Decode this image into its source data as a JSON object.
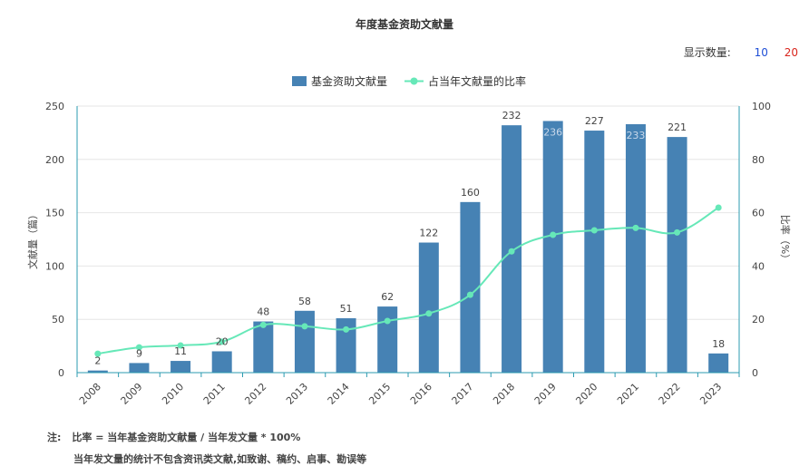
{
  "header": {
    "title": "年度基金资助文献量",
    "count_label": "显示数量:",
    "count_options": [
      "10",
      "20"
    ]
  },
  "colors": {
    "bar": "#4682b4",
    "line": "#66e8b8",
    "axis": "#2b9bb0",
    "grid": "#e6e6e6"
  },
  "chart_data": {
    "type": "bar",
    "title": "年度基金资助文献量",
    "categories": [
      "2008",
      "2009",
      "2010",
      "2011",
      "2012",
      "2013",
      "2014",
      "2015",
      "2016",
      "2017",
      "2018",
      "2019",
      "2020",
      "2021",
      "2022",
      "2023"
    ],
    "series": [
      {
        "name": "基金资助文献量",
        "type": "bar",
        "axis": "left",
        "values": [
          2,
          9,
          11,
          20,
          48,
          58,
          51,
          62,
          122,
          160,
          232,
          236,
          227,
          233,
          221,
          18
        ]
      },
      {
        "name": "占当年文献量的比率",
        "type": "line",
        "axis": "right",
        "values": [
          7.1,
          9.5,
          10.2,
          11.6,
          17.9,
          17.4,
          16.2,
          19.4,
          22.2,
          29.2,
          45.5,
          51.7,
          53.4,
          54.3,
          52.6,
          61.9
        ]
      }
    ],
    "ylabel": "文献量（篇）",
    "ylim": [
      0,
      250
    ],
    "yticks": [
      0,
      50,
      100,
      150,
      200,
      250
    ],
    "y2label": "比率（%）",
    "y2lim": [
      0,
      100
    ],
    "y2ticks": [
      0,
      20,
      40,
      60,
      80,
      100
    ],
    "legend": "top-center",
    "grid": true
  },
  "notes": {
    "label": "注:",
    "line1": "比率 = 当年基金资助文献量 / 当年发文量 * 100%",
    "line2": "当年发文量的统计不包含资讯类文献,如致谢、稿约、启事、勘误等"
  }
}
